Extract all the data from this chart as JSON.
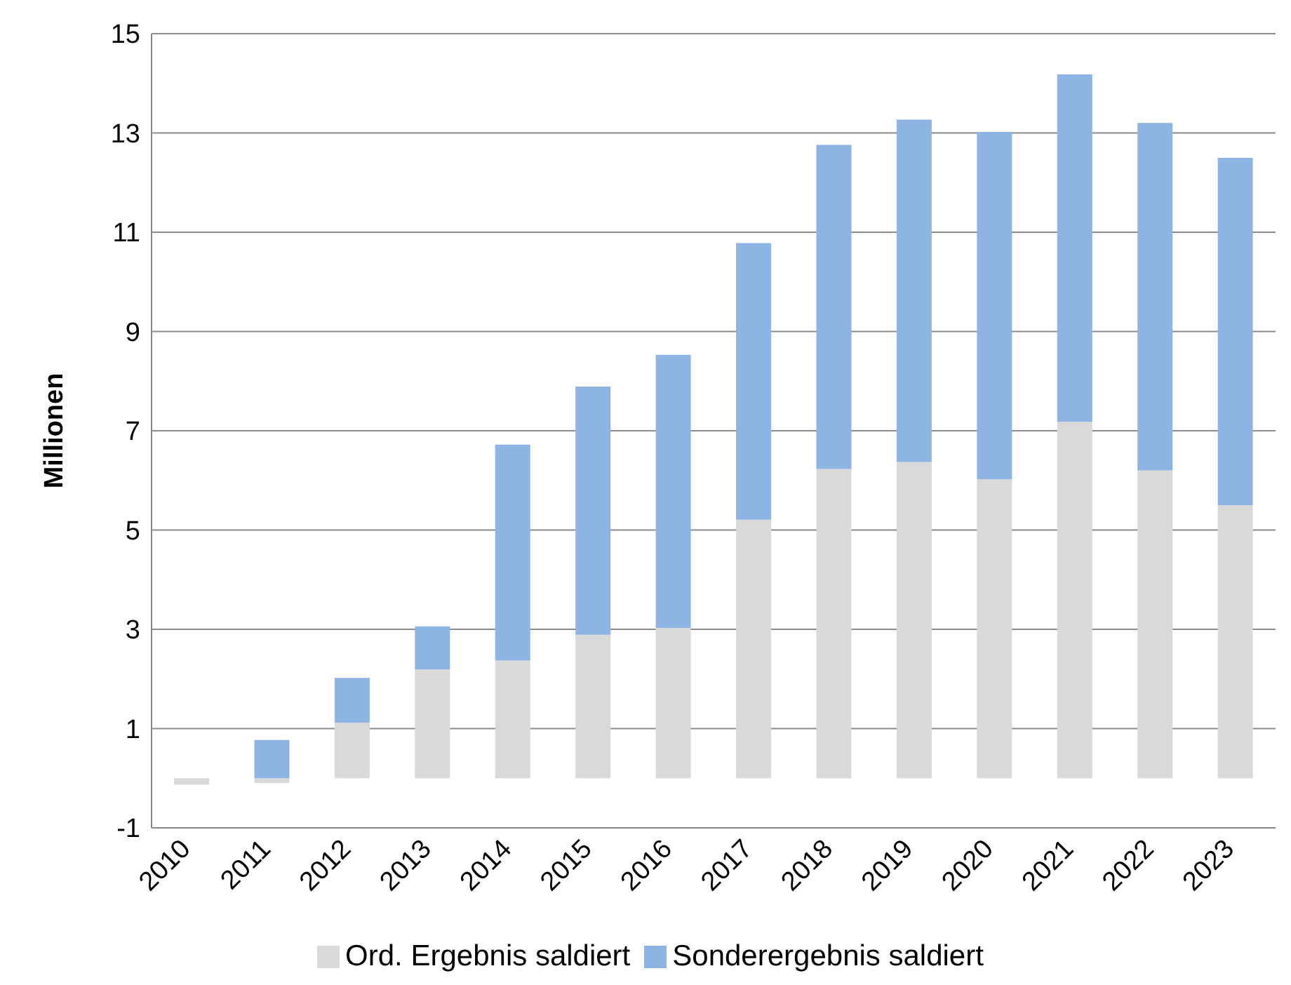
{
  "chart_data": {
    "type": "bar",
    "stacked": true,
    "ylabel": "Millionen",
    "categories": [
      "2010",
      "2011",
      "2012",
      "2013",
      "2014",
      "2015",
      "2016",
      "2017",
      "2018",
      "2019",
      "2020",
      "2021",
      "2022",
      "2023"
    ],
    "series": [
      {
        "name": "Ord. Ergebnis saldiert",
        "color": "#d9d9d9",
        "values": [
          -0.13,
          -0.1,
          1.12,
          2.19,
          2.37,
          2.89,
          3.03,
          5.21,
          6.23,
          6.37,
          6.02,
          7.18,
          6.2,
          5.5
        ]
      },
      {
        "name": "Sonderergebnis saldiert",
        "color": "#8eb4e3",
        "values": [
          0,
          0.77,
          0.9,
          0.87,
          4.35,
          5.0,
          5.5,
          5.57,
          6.53,
          6.9,
          7.0,
          7.0,
          7.0,
          7.0
        ]
      }
    ],
    "ylim": [
      -1,
      15
    ],
    "yticks": [
      -1,
      1,
      3,
      5,
      7,
      9,
      11,
      13,
      15
    ],
    "grid": "y",
    "legend": "bottom"
  }
}
